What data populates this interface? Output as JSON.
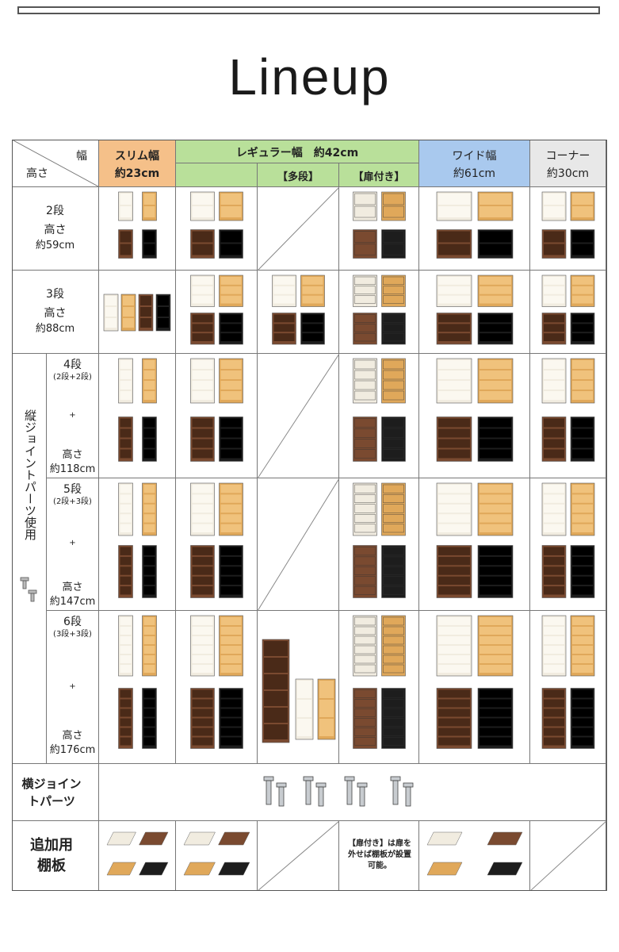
{
  "title": "Lineup",
  "corner": {
    "top": "幅",
    "bottom": "高さ"
  },
  "headers": {
    "slim": {
      "name": "スリム幅",
      "width": "約23cm",
      "color": "#f5c089"
    },
    "regular": {
      "name": "レギュラー幅　約42cm",
      "color": "#b9e09a",
      "sub1": "【多段】",
      "sub2": "【扉付き】"
    },
    "wide": {
      "name": "ワイド幅",
      "width": "約61cm",
      "color": "#a9c9ee"
    },
    "corner": {
      "name": "コーナー",
      "width": "約30cm",
      "color": "#e8e8e8"
    }
  },
  "rows": {
    "r2": {
      "tiers": "2段",
      "h_label": "高さ",
      "height": "約59cm"
    },
    "r3": {
      "tiers": "3段",
      "h_label": "高さ",
      "height": "約88cm"
    },
    "r4": {
      "tiers": "4段",
      "combo": "(2段+2段)",
      "plus": "+",
      "h_label": "高さ",
      "height": "約118cm"
    },
    "r5": {
      "tiers": "5段",
      "combo": "(2段+3段)",
      "plus": "+",
      "h_label": "高さ",
      "height": "約147cm"
    },
    "r6": {
      "tiers": "6段",
      "combo": "(3段+3段)",
      "plus": "+",
      "h_label": "高さ",
      "height": "約176cm"
    }
  },
  "vertical_joint": "縦ジョイントパーツ使用",
  "horizontal_joint": "横ジョイントパーツ",
  "extra_shelf": {
    "label": "追加用棚板",
    "note": "【扉付き】は扉を外せば棚板が設置可能。"
  },
  "finishes": {
    "white": "#f1ece0",
    "natural": "#e0a85a",
    "brown": "#7a4a30",
    "black": "#1d1d1d"
  }
}
